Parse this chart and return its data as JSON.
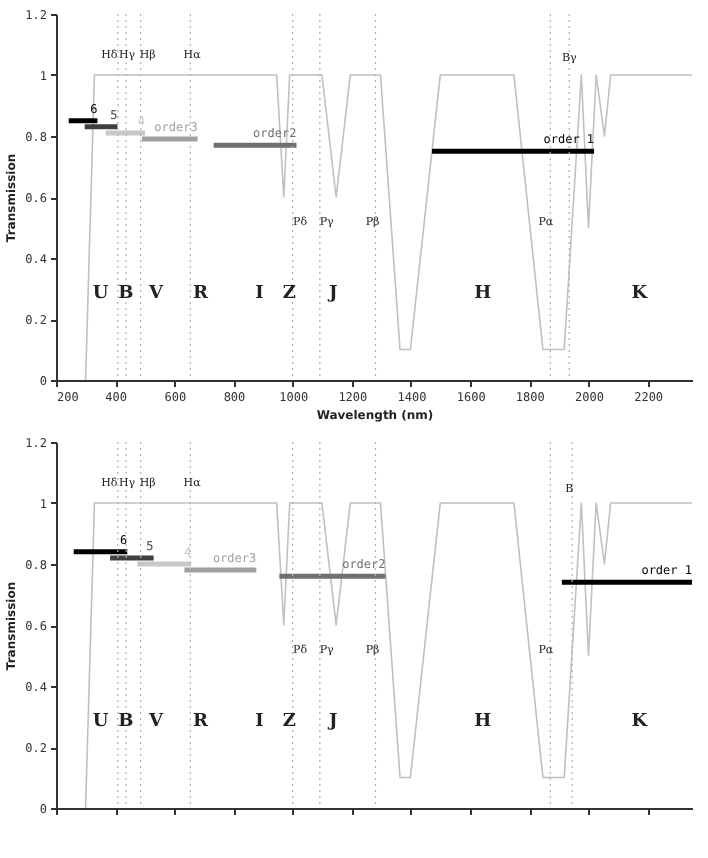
{
  "chart_data": [
    {
      "type": "line",
      "xlabel": "Wavelength (nm)",
      "ylabel": "Transmission",
      "xlim": [
        200,
        2350
      ],
      "ylim": [
        0,
        1.2
      ],
      "xticks": [
        200,
        400,
        600,
        800,
        1000,
        1200,
        1400,
        1600,
        1800,
        2000,
        2200
      ],
      "yticks": [
        0,
        0.2,
        0.4,
        0.6,
        0.8,
        1,
        1.2
      ],
      "grid": false,
      "marker": "none",
      "line_style": "solid",
      "series": [
        {
          "color": "#c0c0c0",
          "x": [
            300,
            330,
            946,
            970,
            990,
            1099,
            1147,
            1195,
            1297,
            1363,
            1398,
            1499,
            1748,
            1846,
            1918,
            1976,
            2000,
            2026,
            2054,
            2075,
            2350
          ],
          "values": [
            0,
            1,
            1,
            0.6,
            1,
            1,
            0.6,
            1,
            1,
            0.1,
            0.1,
            1,
            1,
            0.1,
            0.1,
            1,
            0.5,
            1,
            0.8,
            1,
            1
          ]
        },
        {
          "name": "6",
          "color": "#000000",
          "x": [
            243,
            340
          ],
          "values": [
            0.85,
            0.85
          ]
        },
        {
          "name": "5",
          "color": "#404040",
          "x": [
            297,
            408
          ],
          "values": [
            0.83,
            0.83
          ]
        },
        {
          "name": "4",
          "color": "#c8c8c8",
          "x": [
            368,
            501
          ],
          "values": [
            0.81,
            0.81
          ]
        },
        {
          "name": "order3",
          "color": "#a0a0a0",
          "x": [
            490,
            679
          ],
          "values": [
            0.79,
            0.79
          ]
        },
        {
          "name": "order2",
          "color": "#707070",
          "x": [
            733,
            1013
          ],
          "values": [
            0.77,
            0.77
          ]
        },
        {
          "name": "order 1",
          "color": "#000000",
          "x": [
            1471,
            2019
          ],
          "values": [
            0.75,
            0.75
          ]
        }
      ],
      "ref_lines": [
        {
          "axis": "x",
          "value": 409,
          "color": "#b0b0b0",
          "line_style": "dotted"
        },
        {
          "axis": "x",
          "value": 437,
          "color": "#b0b0b0",
          "line_style": "dotted"
        },
        {
          "axis": "x",
          "value": 486,
          "color": "#b0b0b0",
          "line_style": "dotted"
        },
        {
          "axis": "x",
          "value": 654,
          "color": "#b0b0b0",
          "line_style": "dotted"
        },
        {
          "axis": "x",
          "value": 1000,
          "color": "#b0b0b0",
          "line_style": "dotted"
        },
        {
          "axis": "x",
          "value": 1092,
          "color": "#b0b0b0",
          "line_style": "dotted"
        },
        {
          "axis": "x",
          "value": 1280,
          "color": "#b0b0b0",
          "line_style": "dotted"
        },
        {
          "axis": "x",
          "value": 1871,
          "color": "#b0b0b0",
          "line_style": "dotted"
        },
        {
          "axis": "x",
          "value": 1935,
          "color": "#b0b0b0",
          "line_style": "dotted"
        }
      ],
      "annotations": [
        {
          "text": "Hδ",
          "x": 380,
          "y": 1.07
        },
        {
          "text": "Hγ",
          "x": 440,
          "y": 1.07
        },
        {
          "text": "Hβ",
          "x": 510,
          "y": 1.07
        },
        {
          "text": "Hα",
          "x": 660,
          "y": 1.07
        },
        {
          "text": "Bγ",
          "x": 1935,
          "y": 1.06
        },
        {
          "text": "Pδ",
          "x": 1025,
          "y": 0.52
        },
        {
          "text": "Pγ",
          "x": 1115,
          "y": 0.52
        },
        {
          "text": "Pβ",
          "x": 1270,
          "y": 0.52
        },
        {
          "text": "Pα",
          "x": 1856,
          "y": 0.52
        },
        "U",
        "B",
        "V",
        "R",
        "I",
        "Z",
        "J",
        "H",
        "K"
      ]
    },
    {
      "type": "line",
      "ylabel": "Transmission",
      "xlim": [
        200,
        2350
      ],
      "ylim": [
        0,
        1.2
      ],
      "tick_labels": "y",
      "xticks": [
        {
          "value": 200,
          "label": null
        },
        {
          "value": 400,
          "label": null
        },
        {
          "value": 600,
          "label": null
        },
        {
          "value": 800,
          "label": null
        },
        {
          "value": 1000,
          "label": null
        },
        {
          "value": 1200,
          "label": null
        },
        {
          "value": 1400,
          "label": null
        },
        {
          "value": 1600,
          "label": null
        },
        {
          "value": 1800,
          "label": null
        },
        {
          "value": 2000,
          "label": null
        },
        {
          "value": 2200,
          "label": null
        }
      ],
      "yticks": [
        0,
        0.2,
        0.4,
        0.6,
        0.8,
        1,
        1.2
      ],
      "grid": false,
      "marker": "none",
      "line_style": "solid",
      "series": [
        {
          "color": "#c0c0c0",
          "x": [
            300,
            330,
            946,
            970,
            990,
            1099,
            1147,
            1195,
            1297,
            1363,
            1398,
            1499,
            1748,
            1846,
            1918,
            1976,
            2000,
            2026,
            2054,
            2075,
            2350
          ],
          "values": [
            0,
            1,
            1,
            0.6,
            1,
            1,
            0.6,
            1,
            1,
            0.1,
            0.1,
            1,
            1,
            0.1,
            0.1,
            1,
            0.5,
            1,
            0.8,
            1,
            1
          ]
        },
        {
          "name": "6",
          "color": "#000000",
          "x": [
            260,
            441
          ],
          "values": [
            0.84,
            0.84
          ]
        },
        {
          "name": "5",
          "color": "#404040",
          "x": [
            383,
            530
          ],
          "values": [
            0.82,
            0.82
          ]
        },
        {
          "name": "4",
          "color": "#c8c8c8",
          "x": [
            475,
            657
          ],
          "values": [
            0.8,
            0.8
          ]
        },
        {
          "name": "order3",
          "color": "#a0a0a0",
          "x": [
            634,
            877
          ],
          "values": [
            0.78,
            0.78
          ]
        },
        {
          "name": "order2",
          "color": "#707070",
          "x": [
            955,
            1314
          ],
          "values": [
            0.76,
            0.76
          ]
        },
        {
          "name": "order 1",
          "color": "#000000",
          "x": [
            1910,
            2350
          ],
          "values": [
            0.74,
            0.74
          ]
        }
      ],
      "ref_lines": [
        {
          "axis": "x",
          "value": 409,
          "color": "#b0b0b0",
          "line_style": "dotted"
        },
        {
          "axis": "x",
          "value": 437,
          "color": "#b0b0b0",
          "line_style": "dotted"
        },
        {
          "axis": "x",
          "value": 486,
          "color": "#b0b0b0",
          "line_style": "dotted"
        },
        {
          "axis": "x",
          "value": 654,
          "color": "#b0b0b0",
          "line_style": "dotted"
        },
        {
          "axis": "x",
          "value": 1000,
          "color": "#b0b0b0",
          "line_style": "dotted"
        },
        {
          "axis": "x",
          "value": 1092,
          "color": "#b0b0b0",
          "line_style": "dotted"
        },
        {
          "axis": "x",
          "value": 1280,
          "color": "#b0b0b0",
          "line_style": "dotted"
        },
        {
          "axis": "x",
          "value": 1871,
          "color": "#b0b0b0",
          "line_style": "dotted"
        },
        {
          "axis": "x",
          "value": 1945,
          "color": "#b0b0b0",
          "line_style": "dotted"
        }
      ],
      "annotations": [
        {
          "text": "Hδ",
          "x": 380,
          "y": 1.07
        },
        {
          "text": "Hγ",
          "x": 440,
          "y": 1.07
        },
        {
          "text": "Hβ",
          "x": 510,
          "y": 1.07
        },
        {
          "text": "Hα",
          "x": 660,
          "y": 1.07
        },
        {
          "text": "B",
          "x": 1935,
          "y": 1.05
        },
        {
          "text": "Pδ",
          "x": 1025,
          "y": 0.52
        },
        {
          "text": "Pγ",
          "x": 1115,
          "y": 0.52
        },
        {
          "text": "Pβ",
          "x": 1270,
          "y": 0.52
        },
        {
          "text": "Pα",
          "x": 1856,
          "y": 0.52
        },
        "U",
        "B",
        "V",
        "R",
        "I",
        "Z",
        "J",
        "H",
        "K"
      ]
    }
  ]
}
